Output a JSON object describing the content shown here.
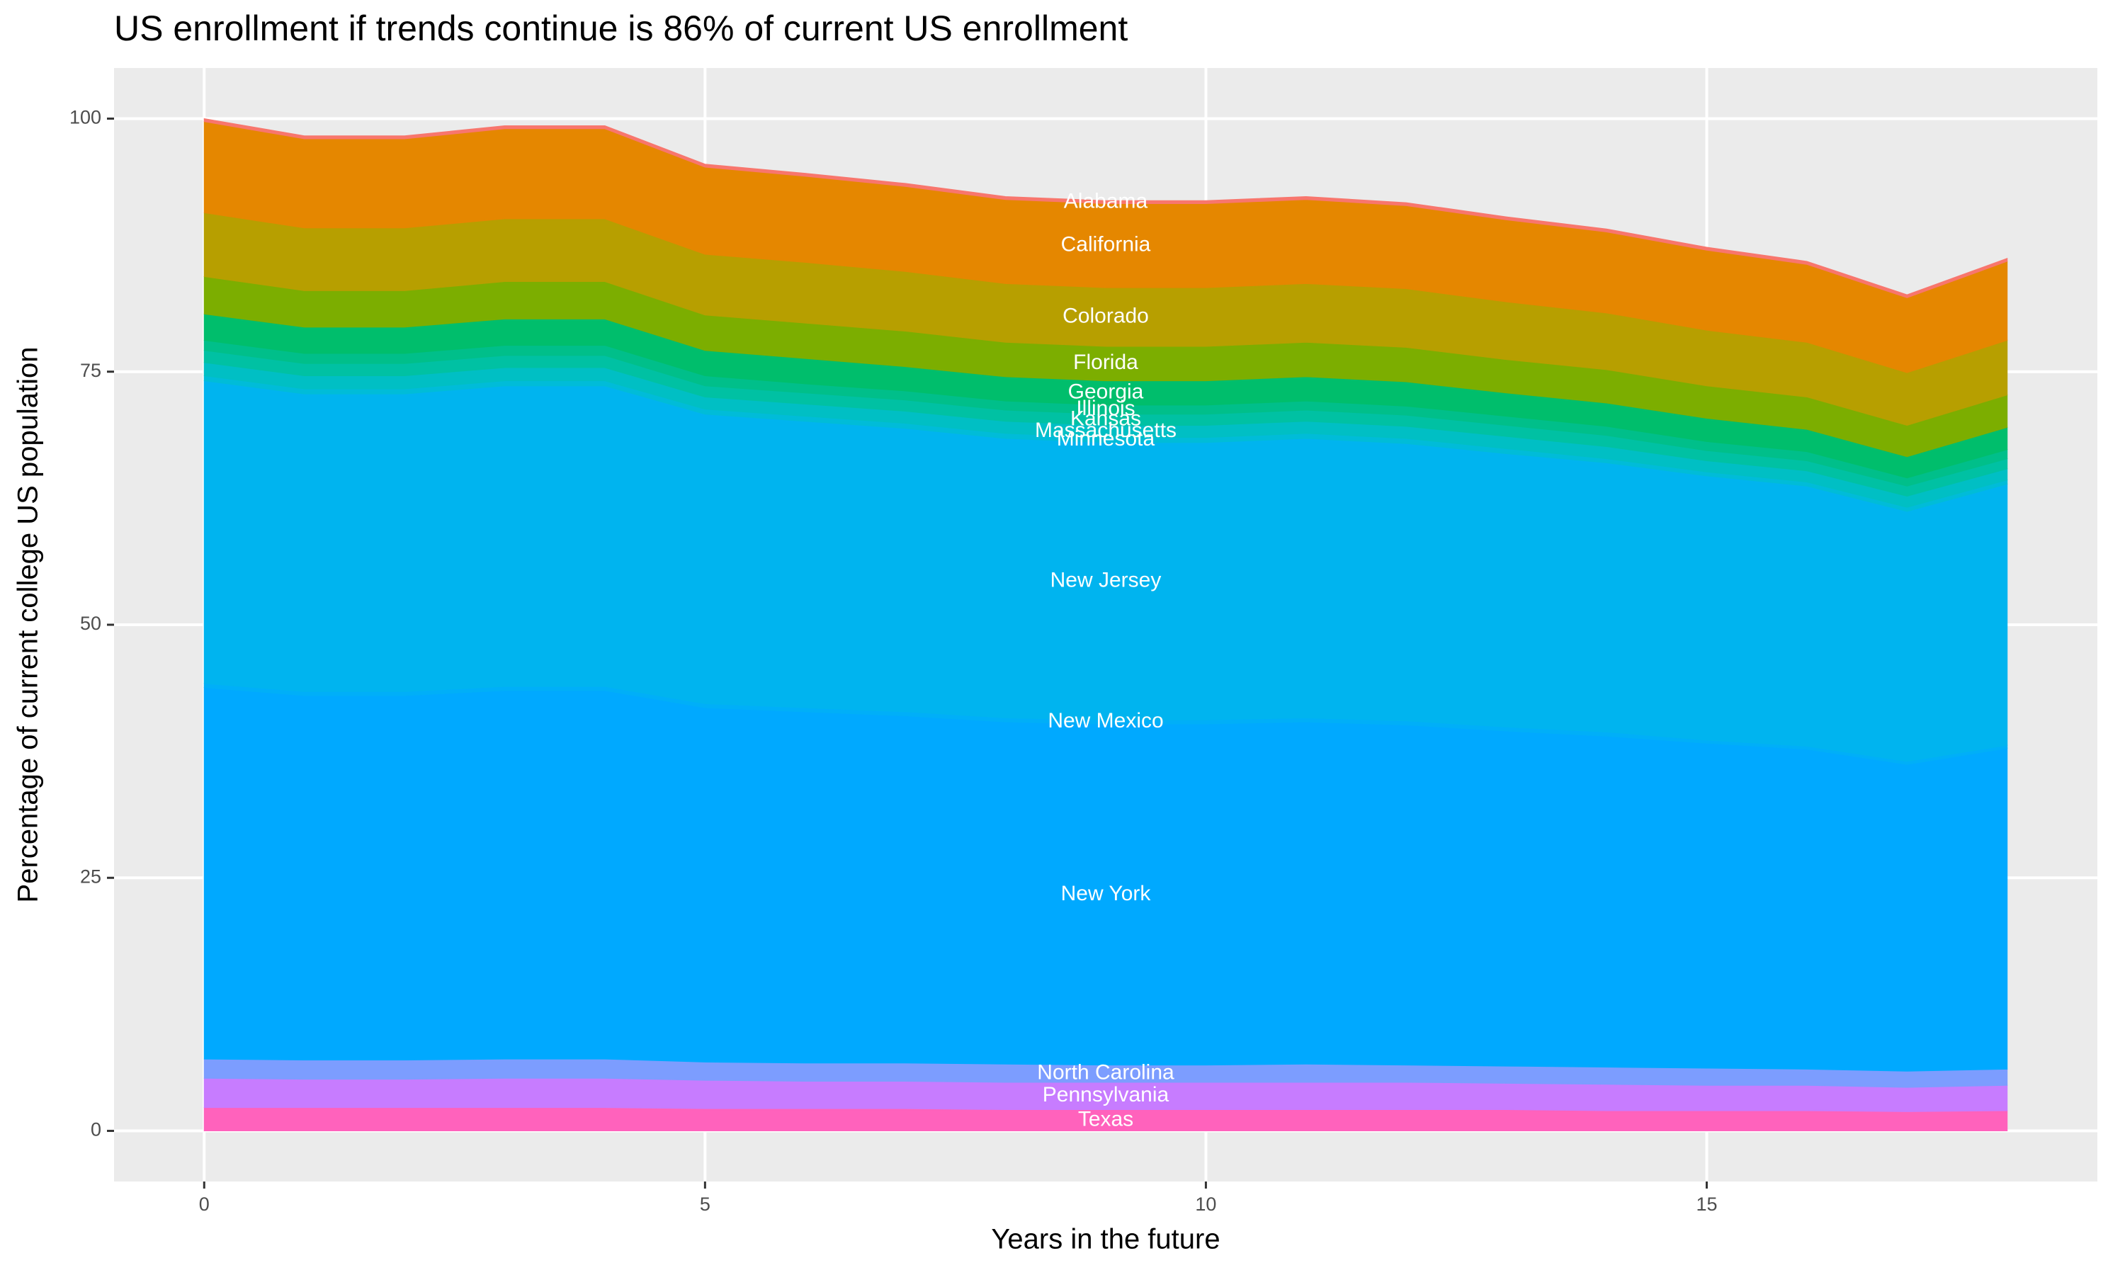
{
  "chart_data": {
    "type": "stacked-area",
    "title": "US enrollment if trends continue is 86% of current US enrollment",
    "x_label": "Years in the future",
    "y_label": "Percentage of current college US population",
    "x": [
      0,
      1,
      2,
      3,
      4,
      5,
      6,
      7,
      8,
      9,
      10,
      11,
      12,
      13,
      14,
      15,
      16,
      17,
      18
    ],
    "xlim": [
      -0.9,
      18.9
    ],
    "xticks": [
      0,
      5,
      10,
      15
    ],
    "ylim": [
      -5,
      105
    ],
    "yticks": [
      0,
      25,
      50,
      75,
      100
    ],
    "grid": true,
    "label_color": "#ffffff",
    "series": [
      {
        "name": "Texas",
        "color": "#FF62BC",
        "values": [
          2.3,
          2.3,
          2.3,
          2.3,
          2.3,
          2.2,
          2.2,
          2.2,
          2.1,
          2.1,
          2.1,
          2.1,
          2.1,
          2.1,
          2.0,
          2.0,
          2.0,
          1.9,
          2.0
        ]
      },
      {
        "name": "Pennsylvania",
        "color": "#C77CFF",
        "values": [
          2.9,
          2.8,
          2.8,
          2.9,
          2.9,
          2.8,
          2.7,
          2.7,
          2.7,
          2.7,
          2.7,
          2.7,
          2.7,
          2.6,
          2.6,
          2.5,
          2.5,
          2.4,
          2.5
        ]
      },
      {
        "name": "North Carolina",
        "color": "#7C9DFF",
        "values": [
          1.9,
          1.9,
          1.9,
          1.9,
          1.9,
          1.8,
          1.8,
          1.8,
          1.8,
          1.7,
          1.7,
          1.8,
          1.7,
          1.7,
          1.7,
          1.7,
          1.6,
          1.6,
          1.6
        ]
      },
      {
        "name": "New York",
        "color": "#00A9FF",
        "values": [
          36.7,
          36.0,
          36.0,
          36.4,
          36.4,
          35.0,
          34.7,
          34.3,
          33.8,
          33.7,
          33.7,
          33.8,
          33.6,
          33.1,
          32.7,
          32.1,
          31.6,
          30.3,
          31.7
        ]
      },
      {
        "name": "New Mexico",
        "color": "#00AFF8",
        "values": [
          0.4,
          0.4,
          0.4,
          0.4,
          0.4,
          0.4,
          0.4,
          0.4,
          0.4,
          0.4,
          0.4,
          0.4,
          0.4,
          0.4,
          0.4,
          0.3,
          0.3,
          0.3,
          0.3
        ]
      },
      {
        "name": "New Jersey",
        "color": "#00B4EF",
        "values": [
          29.9,
          29.4,
          29.4,
          29.7,
          29.7,
          28.6,
          28.3,
          28.0,
          27.6,
          27.4,
          27.4,
          27.6,
          27.4,
          27.0,
          26.6,
          26.1,
          25.7,
          24.7,
          25.8
        ]
      },
      {
        "name": "Minnesota",
        "color": "#00BCD8",
        "values": [
          0.5,
          0.5,
          0.5,
          0.5,
          0.5,
          0.5,
          0.5,
          0.5,
          0.5,
          0.5,
          0.5,
          0.5,
          0.5,
          0.5,
          0.4,
          0.4,
          0.4,
          0.4,
          0.4
        ]
      },
      {
        "name": "Massachusetts",
        "color": "#00BFC4",
        "values": [
          1.3,
          1.3,
          1.3,
          1.3,
          1.3,
          1.2,
          1.2,
          1.2,
          1.2,
          1.2,
          1.2,
          1.2,
          1.2,
          1.2,
          1.2,
          1.1,
          1.1,
          1.1,
          1.1
        ]
      },
      {
        "name": "Kansas",
        "color": "#00C1A3",
        "values": [
          1.2,
          1.2,
          1.2,
          1.2,
          1.2,
          1.1,
          1.1,
          1.1,
          1.1,
          1.1,
          1.1,
          1.1,
          1.1,
          1.1,
          1.1,
          1.0,
          1.0,
          1.0,
          1.0
        ]
      },
      {
        "name": "Illinois",
        "color": "#00BF8A",
        "values": [
          1.0,
          1.0,
          1.0,
          1.0,
          1.0,
          1.0,
          0.9,
          0.9,
          0.9,
          0.9,
          0.9,
          0.9,
          0.9,
          0.9,
          0.9,
          0.9,
          0.9,
          0.8,
          0.9
        ]
      },
      {
        "name": "Georgia",
        "color": "#00BE6C",
        "values": [
          2.6,
          2.6,
          2.6,
          2.6,
          2.6,
          2.5,
          2.5,
          2.4,
          2.4,
          2.4,
          2.4,
          2.4,
          2.4,
          2.3,
          2.3,
          2.3,
          2.2,
          2.1,
          2.2
        ]
      },
      {
        "name": "Florida",
        "color": "#7CAE00",
        "values": [
          3.7,
          3.6,
          3.6,
          3.7,
          3.7,
          3.5,
          3.5,
          3.5,
          3.4,
          3.4,
          3.4,
          3.4,
          3.4,
          3.3,
          3.3,
          3.2,
          3.2,
          3.1,
          3.2
        ]
      },
      {
        "name": "Colorado",
        "color": "#B79F00",
        "values": [
          6.3,
          6.2,
          6.2,
          6.2,
          6.2,
          6.0,
          6.0,
          5.9,
          5.8,
          5.8,
          5.8,
          5.8,
          5.8,
          5.7,
          5.6,
          5.5,
          5.4,
          5.2,
          5.4
        ]
      },
      {
        "name": "California",
        "color": "#E58700",
        "values": [
          9.0,
          8.8,
          8.8,
          8.9,
          8.9,
          8.6,
          8.5,
          8.4,
          8.3,
          8.3,
          8.3,
          8.3,
          8.2,
          8.1,
          8.0,
          7.9,
          7.7,
          7.4,
          7.8
        ]
      },
      {
        "name": "Alabama",
        "color": "#F8766D",
        "values": [
          0.3,
          0.3,
          0.3,
          0.3,
          0.3,
          0.3,
          0.3,
          0.3,
          0.3,
          0.3,
          0.3,
          0.3,
          0.3,
          0.3,
          0.3,
          0.3,
          0.3,
          0.3,
          0.3
        ]
      }
    ]
  }
}
